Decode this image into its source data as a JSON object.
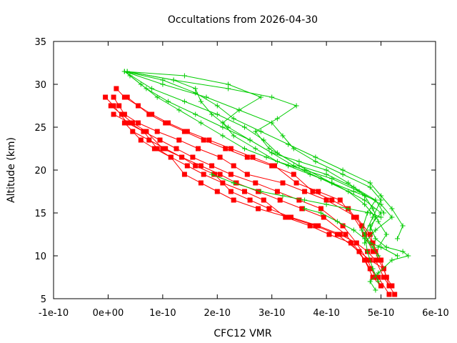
{
  "chart_data": {
    "type": "line",
    "title": "Occultations from 2026-04-30",
    "xlabel": "CFC12 VMR",
    "ylabel": "Altitude (km)",
    "xlim": [
      -1e-10,
      6e-10
    ],
    "ylim": [
      5,
      35
    ],
    "x_ticks": [
      -1e-10,
      0,
      1e-10,
      2e-10,
      3e-10,
      4e-10,
      5e-10,
      6e-10
    ],
    "x_tick_labels": [
      "-1e-10",
      "0e+00",
      "1e-10",
      "2e-10",
      "3e-10",
      "4e-10",
      "5e-10",
      "6e-10"
    ],
    "y_ticks": [
      5,
      10,
      15,
      20,
      25,
      30,
      35
    ],
    "y_tick_labels": [
      "5",
      "10",
      "15",
      "20",
      "25",
      "30",
      "35"
    ],
    "grid": false,
    "colors": {
      "red": "#ff0000",
      "green": "#00cc00"
    },
    "series": [
      {
        "color": "red",
        "marker": "square",
        "x": [
          1e-11,
          2e-11,
          3e-11,
          5.5e-11,
          9e-11,
          1.3e-10,
          1.65e-10,
          2.05e-10,
          2.3e-10,
          2.55e-10,
          3.2e-10,
          3.6e-10,
          4e-10,
          4.55e-10,
          4.8e-10,
          4.9e-10,
          4.95e-10,
          5.05e-10,
          5.1e-10
        ],
        "y": [
          28.5,
          27.5,
          26.5,
          25.5,
          24.5,
          23.5,
          22.5,
          21.5,
          20.5,
          19.5,
          18.5,
          17.5,
          16.5,
          14.5,
          12.5,
          10.5,
          9.5,
          8.5,
          7.5
        ]
      },
      {
        "color": "red",
        "marker": "square",
        "x": [
          1.5e-11,
          3e-11,
          5.5e-11,
          7.5e-11,
          1.05e-10,
          1.4e-10,
          1.75e-10,
          2.15e-10,
          2.55e-10,
          3e-10,
          3.4e-10,
          3.75e-10,
          4.1e-10,
          4.4e-10,
          4.65e-10,
          4.85e-10,
          5e-10,
          5.1e-10,
          5.2e-10
        ],
        "y": [
          29.5,
          28.5,
          27.5,
          26.5,
          25.5,
          24.5,
          23.5,
          22.5,
          21.5,
          20.5,
          19.5,
          17.5,
          16.5,
          15.5,
          13.5,
          11.5,
          9.5,
          7.5,
          6.5
        ]
      },
      {
        "color": "red",
        "marker": "square",
        "x": [
          -5e-12,
          1e-11,
          3.5e-11,
          6.5e-11,
          9.5e-11,
          1.25e-10,
          1.55e-10,
          1.9e-10,
          2.25e-10,
          2.7e-10,
          3.1e-10,
          3.5e-10,
          3.9e-10,
          4.3e-10,
          4.55e-10,
          4.75e-10,
          4.9e-10,
          5e-10
        ],
        "y": [
          28.5,
          27.5,
          25.5,
          24.5,
          23.5,
          22.5,
          21.5,
          20.5,
          19.5,
          18.5,
          17.5,
          16.5,
          15.5,
          13.5,
          11.5,
          9.5,
          7.5,
          6.5
        ]
      },
      {
        "color": "red",
        "marker": "square",
        "x": [
          5e-12,
          2.5e-11,
          4.5e-11,
          7e-11,
          1e-10,
          1.35e-10,
          1.7e-10,
          2.05e-10,
          2.35e-10,
          2.75e-10,
          3.15e-10,
          3.55e-10,
          3.95e-10,
          4.35e-10,
          4.6e-10,
          4.8e-10,
          4.95e-10,
          5.15e-10
        ],
        "y": [
          27.5,
          26.5,
          25.5,
          24.5,
          22.5,
          21.5,
          20.5,
          19.5,
          18.5,
          17.5,
          16.5,
          15.5,
          14.5,
          12.5,
          10.5,
          8.5,
          7.5,
          5.5
        ]
      },
      {
        "color": "red",
        "marker": "square",
        "x": [
          1e-11,
          4e-11,
          6.5e-11,
          9e-11,
          1.15e-10,
          1.45e-10,
          1.75e-10,
          2.1e-10,
          2.5e-10,
          2.85e-10,
          3.25e-10,
          3.7e-10,
          4.05e-10,
          4.45e-10,
          4.7e-10,
          4.85e-10,
          5e-10
        ],
        "y": [
          26.5,
          25.5,
          24.5,
          22.5,
          21.5,
          20.5,
          19.5,
          18.5,
          17.5,
          16.5,
          14.5,
          13.5,
          12.5,
          11.5,
          9.5,
          7.5,
          6.5
        ]
      },
      {
        "color": "red",
        "marker": "square",
        "x": [
          3e-11,
          6e-11,
          8.5e-11,
          1.15e-10,
          1.4e-10,
          1.7e-10,
          2e-10,
          2.3e-10,
          2.75e-10,
          3.3e-10,
          3.8e-10,
          4.2e-10,
          4.6e-10,
          4.8e-10,
          5.05e-10,
          5.15e-10
        ],
        "y": [
          25.5,
          23.5,
          22.5,
          21.5,
          19.5,
          18.5,
          17.5,
          16.5,
          15.5,
          14.5,
          13.5,
          12.5,
          10.5,
          9.5,
          8.5,
          6.5
        ]
      },
      {
        "color": "red",
        "marker": "square",
        "x": [
          4.5e-11,
          7.5e-11,
          1.05e-10,
          1.35e-10,
          1.6e-10,
          1.95e-10,
          2.25e-10,
          2.6e-10,
          2.95e-10,
          3.35e-10,
          3.85e-10,
          4.25e-10,
          4.55e-10,
          4.75e-10,
          4.9e-10,
          5.05e-10,
          5.25e-10
        ],
        "y": [
          24.5,
          23.5,
          22.5,
          21.5,
          20.5,
          19.5,
          17.5,
          16.5,
          15.5,
          14.5,
          13.5,
          12.5,
          11.5,
          10.5,
          9.5,
          7.5,
          5.5
        ]
      },
      {
        "color": "red",
        "marker": "square",
        "x": [
          3.5e-11,
          5.5e-11,
          8e-11,
          1.1e-10,
          1.45e-10,
          1.85e-10,
          2.25e-10,
          2.65e-10,
          3.05e-10,
          3.45e-10,
          3.85e-10,
          4.25e-10,
          4.5e-10,
          4.7e-10,
          4.85e-10
        ],
        "y": [
          28.5,
          27.5,
          26.5,
          25.5,
          24.5,
          23.5,
          22.5,
          21.5,
          20.5,
          18.5,
          17.5,
          16.5,
          14.5,
          12.5,
          10.5
        ]
      },
      {
        "color": "green",
        "marker": "plus",
        "x": [
          3.5e-11,
          1.2e-10,
          2.2e-10,
          3e-10,
          3.45e-10,
          3.1e-10,
          2.7e-10,
          2.95e-10,
          3.5e-10,
          4.1e-10,
          4.7e-10,
          5e-10,
          4.8e-10,
          4.9e-10,
          5.1e-10,
          5.4e-10,
          5.5e-10,
          5.2e-10,
          4.95e-10,
          4.8e-10,
          4.9e-10
        ],
        "y": [
          31.5,
          30.5,
          29.5,
          28.5,
          27.5,
          26.0,
          24.5,
          22.5,
          20.5,
          18.5,
          16.5,
          15.0,
          13.5,
          12.0,
          11.0,
          10.5,
          10.0,
          9.5,
          8.0,
          7.0,
          6.0
        ]
      },
      {
        "color": "green",
        "marker": "plus",
        "x": [
          3e-11,
          1e-10,
          1.8e-10,
          2.4e-10,
          3e-10,
          3.2e-10,
          3.4e-10,
          3.8e-10,
          4.3e-10,
          4.8e-10,
          5e-10,
          4.85e-10,
          4.7e-10,
          4.75e-10,
          4.85e-10,
          4.95e-10
        ],
        "y": [
          31.5,
          30.0,
          28.5,
          27.0,
          25.5,
          24.0,
          22.5,
          21.0,
          19.5,
          18.0,
          16.5,
          14.5,
          12.5,
          10.5,
          8.5,
          7.0
        ]
      },
      {
        "color": "green",
        "marker": "plus",
        "x": [
          3e-11,
          8e-11,
          1.4e-10,
          2e-10,
          2.5e-10,
          2.85e-10,
          3.1e-10,
          3.5e-10,
          4e-10,
          4.5e-10,
          4.9e-10,
          4.75e-10,
          4.65e-10,
          4.8e-10,
          5e-10,
          5.3e-10
        ],
        "y": [
          31.5,
          29.5,
          28.0,
          26.5,
          25.0,
          23.5,
          22.0,
          20.5,
          19.5,
          18.0,
          16.5,
          15.0,
          13.0,
          11.5,
          11.0,
          10.0
        ]
      },
      {
        "color": "green",
        "marker": "plus",
        "x": [
          4e-11,
          7e-11,
          1.1e-10,
          1.6e-10,
          2.1e-10,
          2.6e-10,
          3e-10,
          3.5e-10,
          4e-10,
          4.4e-10,
          4.7e-10,
          4.85e-10,
          4.95e-10,
          5.1e-10,
          4.95e-10
        ],
        "y": [
          31.0,
          29.5,
          28.0,
          26.5,
          25.0,
          23.5,
          22.0,
          21.0,
          20.0,
          18.5,
          17.0,
          15.5,
          14.0,
          12.5,
          11.0
        ]
      },
      {
        "color": "green",
        "marker": "plus",
        "x": [
          3e-11,
          1e-10,
          1.6e-10,
          2e-10,
          2.3e-10,
          2.8e-10,
          3.3e-10,
          3.8e-10,
          4.3e-10,
          4.8e-10,
          5e-10,
          5.2e-10,
          5.4e-10,
          5.3e-10
        ],
        "y": [
          31.5,
          30.5,
          29.0,
          27.5,
          26.0,
          24.5,
          23.0,
          21.5,
          20.0,
          18.5,
          17.0,
          15.5,
          13.5,
          12.0
        ]
      },
      {
        "color": "green",
        "marker": "plus",
        "x": [
          3.5e-11,
          1.2e-10,
          1.6e-10,
          1.7e-10,
          1.9e-10,
          2.2e-10,
          2.6e-10,
          3e-10,
          3.4e-10,
          3.9e-10,
          4.4e-10,
          4.7e-10,
          4.9e-10,
          4.8e-10
        ],
        "y": [
          31.5,
          30.5,
          29.5,
          28.0,
          26.5,
          25.0,
          23.5,
          22.0,
          20.5,
          19.0,
          17.5,
          16.0,
          14.5,
          13.0
        ]
      },
      {
        "color": "green",
        "marker": "plus",
        "x": [
          3e-11,
          1.4e-10,
          2.2e-10,
          2.8e-10,
          2.4e-10,
          2.1e-10,
          2.3e-10,
          2.7e-10,
          3.1e-10,
          3.6e-10,
          4.1e-10,
          4.6e-10,
          5e-10,
          5.2e-10,
          4.9e-10,
          4.7e-10
        ],
        "y": [
          31.5,
          31.0,
          30.0,
          28.5,
          27.0,
          25.5,
          24.0,
          22.5,
          21.0,
          20.0,
          19.0,
          17.5,
          16.0,
          14.5,
          13.0,
          11.5
        ]
      },
      {
        "color": "green",
        "marker": "plus",
        "x": [
          3e-11,
          6e-11,
          9e-11,
          1.3e-10,
          1.7e-10,
          2.1e-10,
          2.5e-10,
          2.9e-10,
          3.3e-10,
          3.7e-10,
          4.1e-10,
          4.5e-10,
          4.9e-10,
          5.05e-10
        ],
        "y": [
          31.5,
          30.0,
          28.5,
          27.0,
          25.5,
          24.0,
          22.5,
          21.5,
          20.5,
          19.5,
          18.5,
          17.5,
          16.5,
          15.0
        ]
      },
      {
        "color": "green",
        "marker": "plus",
        "x": [
          1.9e-10,
          2.3e-10,
          2.8e-10,
          3.2e-10,
          3.6e-10,
          4e-10,
          4.4e-10,
          4.8e-10,
          5e-10
        ],
        "y": [
          19.5,
          18.5,
          17.5,
          17.0,
          16.5,
          16.0,
          15.5,
          15.0,
          14.5
        ]
      },
      {
        "color": "green",
        "marker": "plus",
        "x": [
          3.6e-10,
          3.9e-10,
          4.2e-10,
          4.5e-10,
          4.7e-10,
          4.85e-10,
          4.95e-10
        ],
        "y": [
          15.5,
          15.0,
          14.0,
          13.0,
          12.0,
          11.0,
          10.0
        ]
      }
    ]
  }
}
